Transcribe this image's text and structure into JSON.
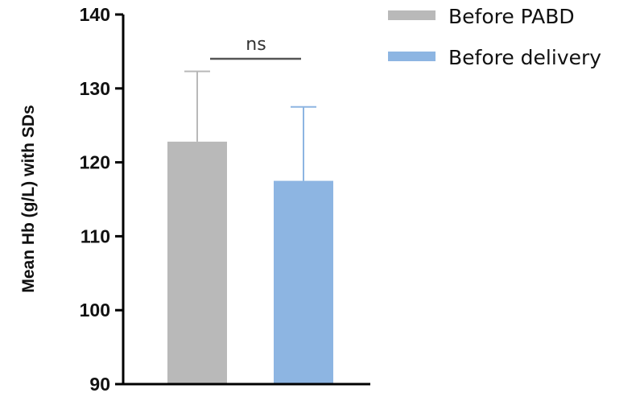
{
  "chart_data": {
    "type": "bar",
    "categories": [
      "Before PABD",
      "Before delivery"
    ],
    "values": [
      122.8,
      117.5
    ],
    "errors": [
      9.5,
      10.0
    ],
    "colors": [
      "#b9b9b9",
      "#8db5e2"
    ],
    "ylabel": "Mean Hb (g/L) with SDs",
    "ylim": [
      90,
      140
    ],
    "yticks": [
      90,
      100,
      110,
      120,
      130,
      140
    ],
    "legend": [
      "Before PABD",
      "Before delivery"
    ],
    "legend_position": "top-right",
    "annotation": "ns",
    "grid": false
  }
}
